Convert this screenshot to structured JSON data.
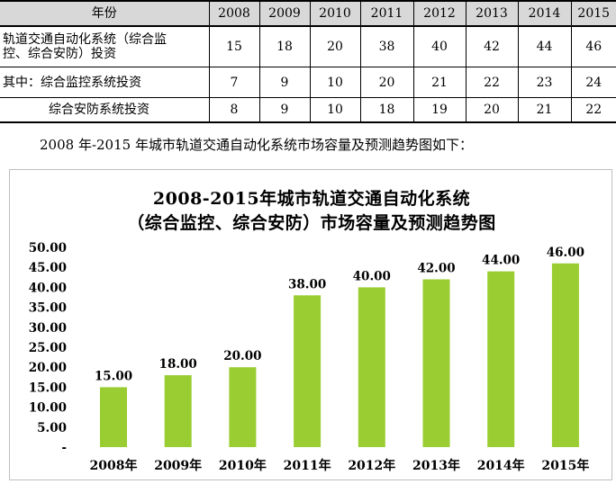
{
  "table": {
    "header_label": "年份",
    "years": [
      "2008",
      "2009",
      "2010",
      "2011",
      "2012",
      "2013",
      "2014",
      "2015"
    ],
    "rows": [
      {
        "label_line1": "轨道交通自动化系统（综合监",
        "label_line2": "控、综合安防）投资",
        "values": [
          "15",
          "18",
          "20",
          "38",
          "40",
          "42",
          "44",
          "46"
        ]
      },
      {
        "label": "其中：综合监控系统投资",
        "values": [
          "7",
          "9",
          "10",
          "20",
          "21",
          "22",
          "23",
          "24"
        ]
      },
      {
        "label": "综合安防系统投资",
        "values": [
          "8",
          "9",
          "10",
          "18",
          "19",
          "20",
          "21",
          "22"
        ]
      }
    ]
  },
  "caption": "2008 年-2015 年城市轨道交通自动化系统市场容量及预测趋势图如下：",
  "chart_data": {
    "type": "bar",
    "title_line1": "2008-2015年城市轨道交通自动化系统",
    "title_line2": "（综合监控、综合安防）市场容量及预测趋势图",
    "categories": [
      "2008年",
      "2009年",
      "2010年",
      "2011年",
      "2012年",
      "2013年",
      "2014年",
      "2015年"
    ],
    "values": [
      15,
      18,
      20,
      38,
      40,
      42,
      44,
      46
    ],
    "data_labels": [
      "15.00",
      "18.00",
      "20.00",
      "38.00",
      "40.00",
      "42.00",
      "44.00",
      "46.00"
    ],
    "y_ticks": [
      "-",
      "5.00",
      "10.00",
      "15.00",
      "20.00",
      "25.00",
      "30.00",
      "35.00",
      "40.00",
      "45.00",
      "50.00"
    ],
    "ylim": [
      0,
      50
    ],
    "bar_color": "#9acd32",
    "grid": false,
    "legend": "none"
  }
}
